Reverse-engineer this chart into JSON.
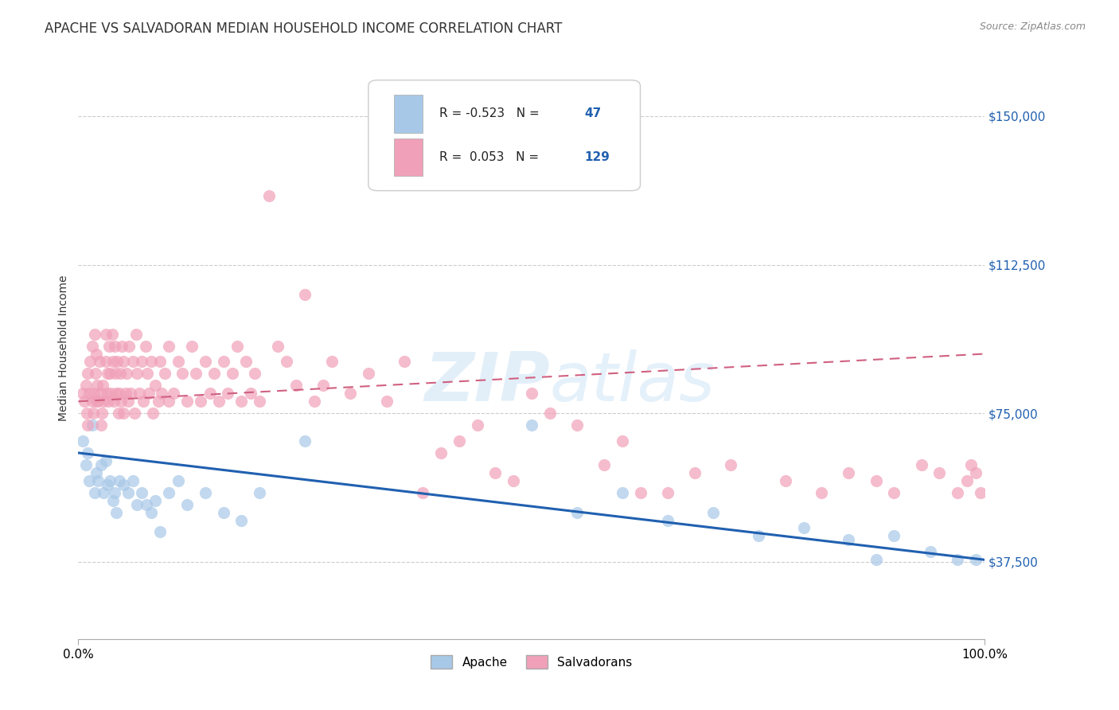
{
  "title": "APACHE VS SALVADORAN MEDIAN HOUSEHOLD INCOME CORRELATION CHART",
  "source": "Source: ZipAtlas.com",
  "ylabel": "Median Household Income",
  "xlim": [
    0.0,
    1.0
  ],
  "ylim": [
    18000,
    165000
  ],
  "yticks": [
    37500,
    75000,
    112500,
    150000
  ],
  "ytick_labels": [
    "$37,500",
    "$75,000",
    "$112,500",
    "$150,000"
  ],
  "xtick_labels": [
    "0.0%",
    "100.0%"
  ],
  "legend_apache_R": "-0.523",
  "legend_apache_N": "47",
  "legend_salvadoran_R": "0.053",
  "legend_salvadoran_N": "129",
  "apache_color": "#a8c8e8",
  "salvadoran_color": "#f0a0b8",
  "apache_line_color": "#2060b0",
  "salvadoran_line_color": "#d06080",
  "background_color": "#ffffff",
  "grid_color": "#cccccc",
  "watermark_zip": "ZIP",
  "watermark_atlas": "atlas",
  "apache_x": [
    0.005,
    0.008,
    0.01,
    0.012,
    0.015,
    0.018,
    0.02,
    0.022,
    0.025,
    0.028,
    0.03,
    0.032,
    0.035,
    0.038,
    0.04,
    0.042,
    0.045,
    0.05,
    0.055,
    0.06,
    0.065,
    0.07,
    0.075,
    0.08,
    0.085,
    0.09,
    0.1,
    0.11,
    0.12,
    0.14,
    0.16,
    0.18,
    0.2,
    0.25,
    0.5,
    0.55,
    0.6,
    0.65,
    0.7,
    0.75,
    0.8,
    0.85,
    0.88,
    0.9,
    0.94,
    0.97,
    0.99
  ],
  "apache_y": [
    68000,
    62000,
    65000,
    58000,
    72000,
    55000,
    60000,
    58000,
    62000,
    55000,
    63000,
    57000,
    58000,
    53000,
    55000,
    50000,
    58000,
    57000,
    55000,
    58000,
    52000,
    55000,
    52000,
    50000,
    53000,
    45000,
    55000,
    58000,
    52000,
    55000,
    50000,
    48000,
    55000,
    68000,
    72000,
    50000,
    55000,
    48000,
    50000,
    44000,
    46000,
    43000,
    38000,
    44000,
    40000,
    38000,
    38000
  ],
  "salvadoran_x": [
    0.005,
    0.007,
    0.008,
    0.009,
    0.01,
    0.01,
    0.012,
    0.013,
    0.015,
    0.015,
    0.016,
    0.017,
    0.018,
    0.019,
    0.02,
    0.02,
    0.021,
    0.022,
    0.023,
    0.024,
    0.025,
    0.026,
    0.027,
    0.028,
    0.03,
    0.03,
    0.031,
    0.032,
    0.033,
    0.034,
    0.035,
    0.036,
    0.037,
    0.038,
    0.039,
    0.04,
    0.041,
    0.042,
    0.043,
    0.044,
    0.045,
    0.046,
    0.047,
    0.048,
    0.05,
    0.05,
    0.052,
    0.053,
    0.055,
    0.056,
    0.058,
    0.06,
    0.062,
    0.064,
    0.065,
    0.067,
    0.07,
    0.072,
    0.074,
    0.076,
    0.078,
    0.08,
    0.082,
    0.085,
    0.088,
    0.09,
    0.092,
    0.095,
    0.1,
    0.1,
    0.105,
    0.11,
    0.115,
    0.12,
    0.125,
    0.13,
    0.135,
    0.14,
    0.145,
    0.15,
    0.155,
    0.16,
    0.165,
    0.17,
    0.175,
    0.18,
    0.185,
    0.19,
    0.195,
    0.2,
    0.21,
    0.22,
    0.23,
    0.24,
    0.25,
    0.26,
    0.27,
    0.28,
    0.3,
    0.32,
    0.34,
    0.36,
    0.38,
    0.4,
    0.42,
    0.44,
    0.46,
    0.48,
    0.5,
    0.52,
    0.55,
    0.58,
    0.6,
    0.62,
    0.65,
    0.68,
    0.72,
    0.78,
    0.82,
    0.85,
    0.88,
    0.9,
    0.93,
    0.95,
    0.97,
    0.98,
    0.985,
    0.99,
    0.995
  ],
  "salvadoran_y": [
    80000,
    78000,
    82000,
    75000,
    72000,
    85000,
    80000,
    88000,
    78000,
    92000,
    75000,
    80000,
    95000,
    85000,
    78000,
    90000,
    82000,
    78000,
    88000,
    80000,
    72000,
    75000,
    82000,
    78000,
    95000,
    88000,
    80000,
    85000,
    78000,
    92000,
    85000,
    80000,
    95000,
    88000,
    78000,
    92000,
    85000,
    80000,
    88000,
    75000,
    80000,
    85000,
    78000,
    92000,
    88000,
    75000,
    80000,
    85000,
    78000,
    92000,
    80000,
    88000,
    75000,
    95000,
    85000,
    80000,
    88000,
    78000,
    92000,
    85000,
    80000,
    88000,
    75000,
    82000,
    78000,
    88000,
    80000,
    85000,
    92000,
    78000,
    80000,
    88000,
    85000,
    78000,
    92000,
    85000,
    78000,
    88000,
    80000,
    85000,
    78000,
    88000,
    80000,
    85000,
    92000,
    78000,
    88000,
    80000,
    85000,
    78000,
    130000,
    92000,
    88000,
    82000,
    105000,
    78000,
    82000,
    88000,
    80000,
    85000,
    78000,
    88000,
    55000,
    65000,
    68000,
    72000,
    60000,
    58000,
    80000,
    75000,
    72000,
    62000,
    68000,
    55000,
    55000,
    60000,
    62000,
    58000,
    55000,
    60000,
    58000,
    55000,
    62000,
    60000,
    55000,
    58000,
    62000,
    60000,
    55000
  ],
  "apache_trend_x": [
    0.0,
    1.0
  ],
  "apache_trend_y": [
    65000,
    38000
  ],
  "salvadoran_trend_x": [
    0.0,
    1.0
  ],
  "salvadoran_trend_y": [
    78000,
    90000
  ]
}
